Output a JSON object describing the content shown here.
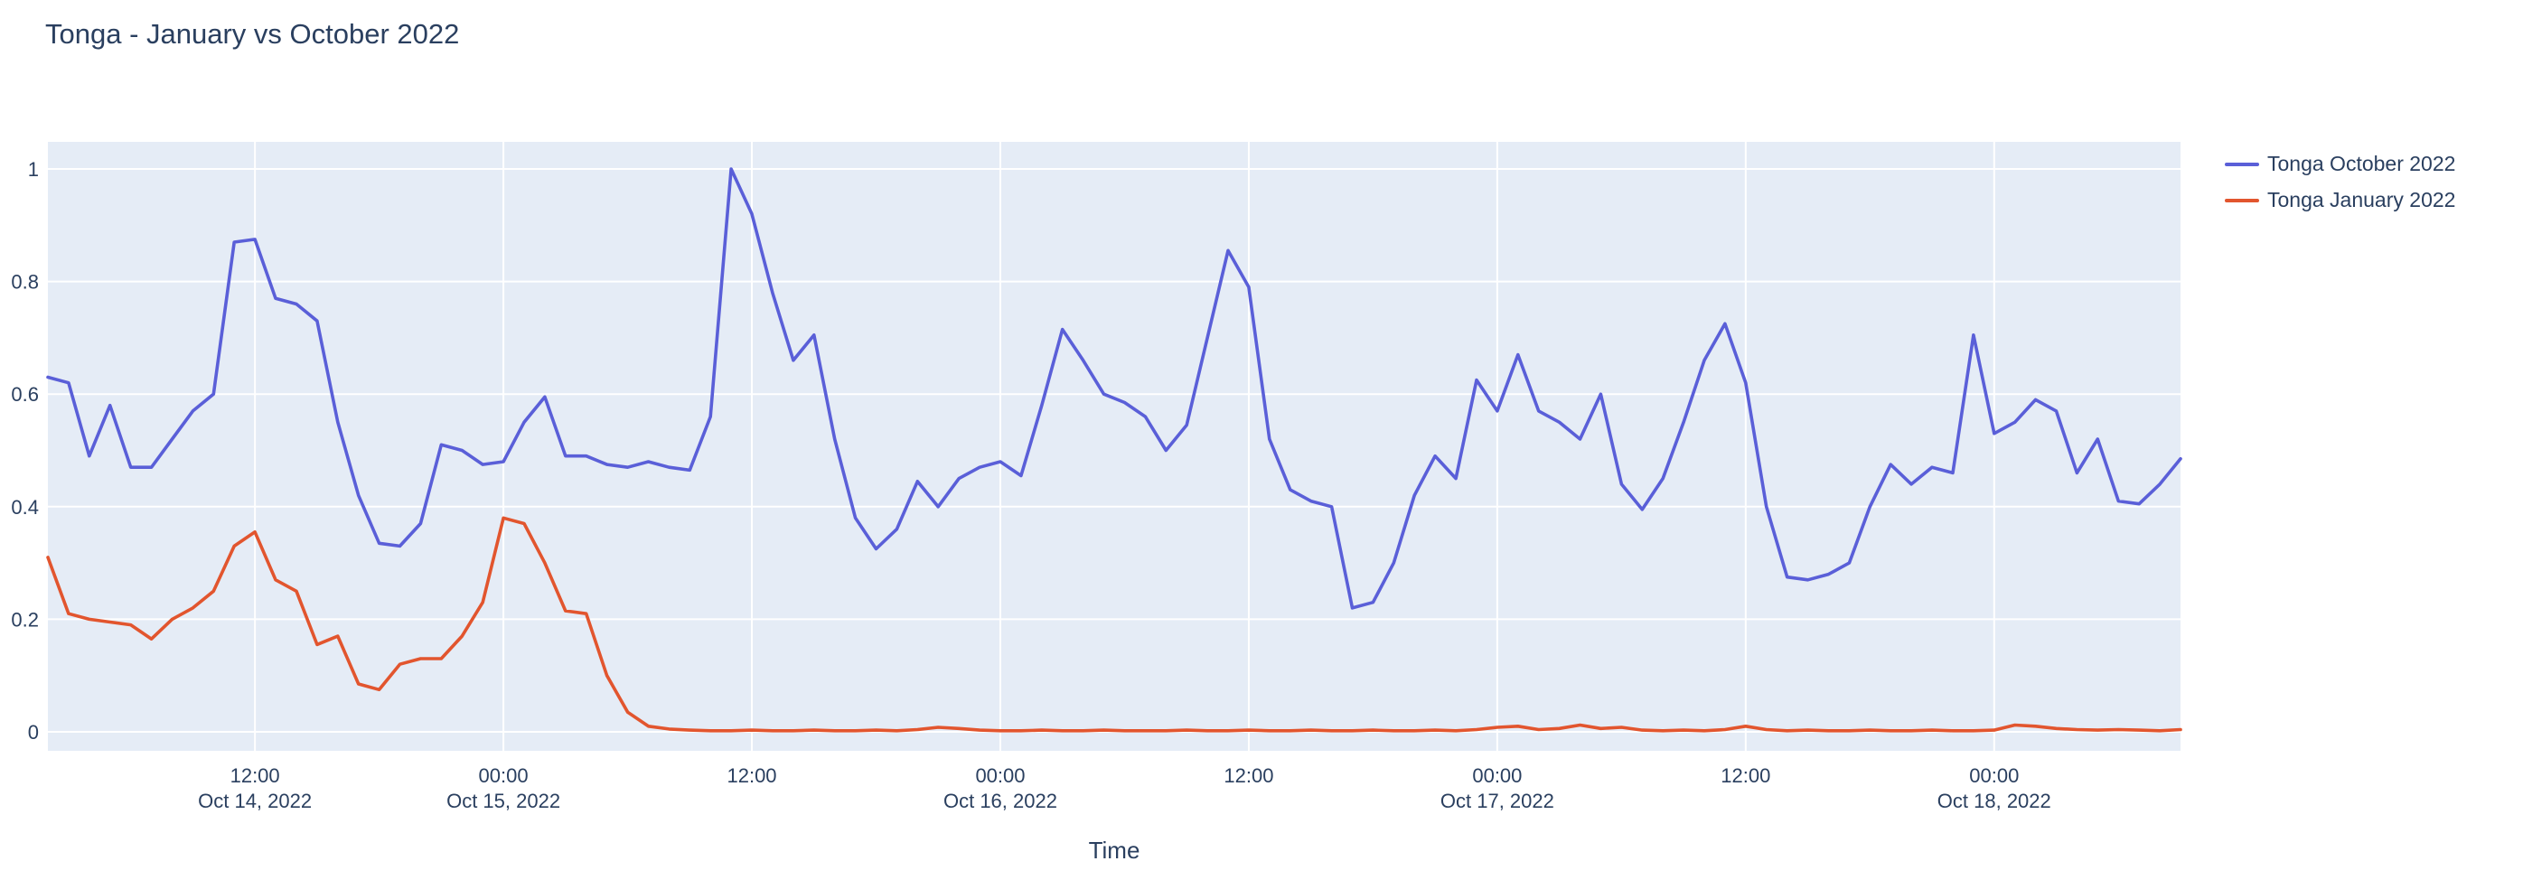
{
  "page": {
    "title": "Tonga - January vs October 2022"
  },
  "colors": {
    "font": "#2a3f5f",
    "plot_background": "#e5ecf6",
    "grid": "#ffffff",
    "october_line": "#5a5fd8",
    "january_line": "#e2552e"
  },
  "chart_data": {
    "type": "line",
    "title": "Tonga - January vs October 2022",
    "xlabel": "Time",
    "ylabel": "",
    "x_axis": {
      "unit": "hours after 2022-10-14 00:00",
      "start_hour": 2,
      "step_hours": 1,
      "end_hour": 105
    },
    "x_ticks": [
      {
        "hour": 12,
        "time": "12:00",
        "date": "Oct 14, 2022"
      },
      {
        "hour": 24,
        "time": "00:00",
        "date": "Oct 15, 2022"
      },
      {
        "hour": 36,
        "time": "12:00",
        "date": ""
      },
      {
        "hour": 48,
        "time": "00:00",
        "date": "Oct 16, 2022"
      },
      {
        "hour": 60,
        "time": "12:00",
        "date": ""
      },
      {
        "hour": 72,
        "time": "00:00",
        "date": "Oct 17, 2022"
      },
      {
        "hour": 84,
        "time": "12:00",
        "date": ""
      },
      {
        "hour": 96,
        "time": "00:00",
        "date": "Oct 18, 2022"
      }
    ],
    "y_ticks": [
      0,
      0.2,
      0.4,
      0.6,
      0.8,
      1
    ],
    "ylim": [
      -0.034,
      1.048
    ],
    "grid": true,
    "legend_position": "right-top",
    "series": [
      {
        "name": "Tonga October 2022",
        "color": "#5a5fd8",
        "values": [
          0.63,
          0.62,
          0.49,
          0.58,
          0.47,
          0.47,
          0.52,
          0.57,
          0.6,
          0.87,
          0.875,
          0.77,
          0.76,
          0.73,
          0.55,
          0.42,
          0.335,
          0.33,
          0.37,
          0.51,
          0.5,
          0.475,
          0.48,
          0.55,
          0.595,
          0.49,
          0.49,
          0.475,
          0.47,
          0.48,
          0.47,
          0.465,
          0.56,
          1.0,
          0.92,
          0.78,
          0.66,
          0.705,
          0.52,
          0.38,
          0.325,
          0.36,
          0.445,
          0.4,
          0.45,
          0.47,
          0.48,
          0.455,
          0.58,
          0.715,
          0.66,
          0.6,
          0.585,
          0.56,
          0.5,
          0.545,
          0.7,
          0.855,
          0.79,
          0.52,
          0.43,
          0.41,
          0.4,
          0.22,
          0.23,
          0.3,
          0.42,
          0.49,
          0.45,
          0.625,
          0.57,
          0.67,
          0.57,
          0.55,
          0.52,
          0.6,
          0.44,
          0.395,
          0.45,
          0.55,
          0.66,
          0.725,
          0.62,
          0.4,
          0.275,
          0.27,
          0.28,
          0.3,
          0.4,
          0.475,
          0.44,
          0.47,
          0.46,
          0.705,
          0.53,
          0.55,
          0.59,
          0.57,
          0.46,
          0.52,
          0.41,
          0.405,
          0.44,
          0.485
        ]
      },
      {
        "name": "Tonga January 2022",
        "color": "#e2552e",
        "values": [
          0.31,
          0.21,
          0.2,
          0.195,
          0.19,
          0.165,
          0.2,
          0.22,
          0.25,
          0.33,
          0.355,
          0.27,
          0.25,
          0.155,
          0.17,
          0.085,
          0.075,
          0.12,
          0.13,
          0.13,
          0.17,
          0.23,
          0.38,
          0.37,
          0.3,
          0.215,
          0.21,
          0.1,
          0.035,
          0.01,
          0.005,
          0.003,
          0.002,
          0.002,
          0.003,
          0.002,
          0.002,
          0.003,
          0.002,
          0.002,
          0.003,
          0.002,
          0.004,
          0.008,
          0.006,
          0.003,
          0.002,
          0.002,
          0.003,
          0.002,
          0.002,
          0.003,
          0.002,
          0.002,
          0.002,
          0.003,
          0.002,
          0.002,
          0.003,
          0.002,
          0.002,
          0.003,
          0.002,
          0.002,
          0.003,
          0.002,
          0.002,
          0.003,
          0.002,
          0.004,
          0.008,
          0.01,
          0.004,
          0.006,
          0.012,
          0.006,
          0.008,
          0.003,
          0.002,
          0.003,
          0.002,
          0.004,
          0.01,
          0.004,
          0.002,
          0.003,
          0.002,
          0.002,
          0.003,
          0.002,
          0.002,
          0.003,
          0.002,
          0.002,
          0.003,
          0.012,
          0.01,
          0.006,
          0.004,
          0.003,
          0.004,
          0.003,
          0.002,
          0.004
        ]
      }
    ]
  },
  "legend": {
    "items": [
      {
        "label": "Tonga October 2022"
      },
      {
        "label": "Tonga January 2022"
      }
    ]
  }
}
